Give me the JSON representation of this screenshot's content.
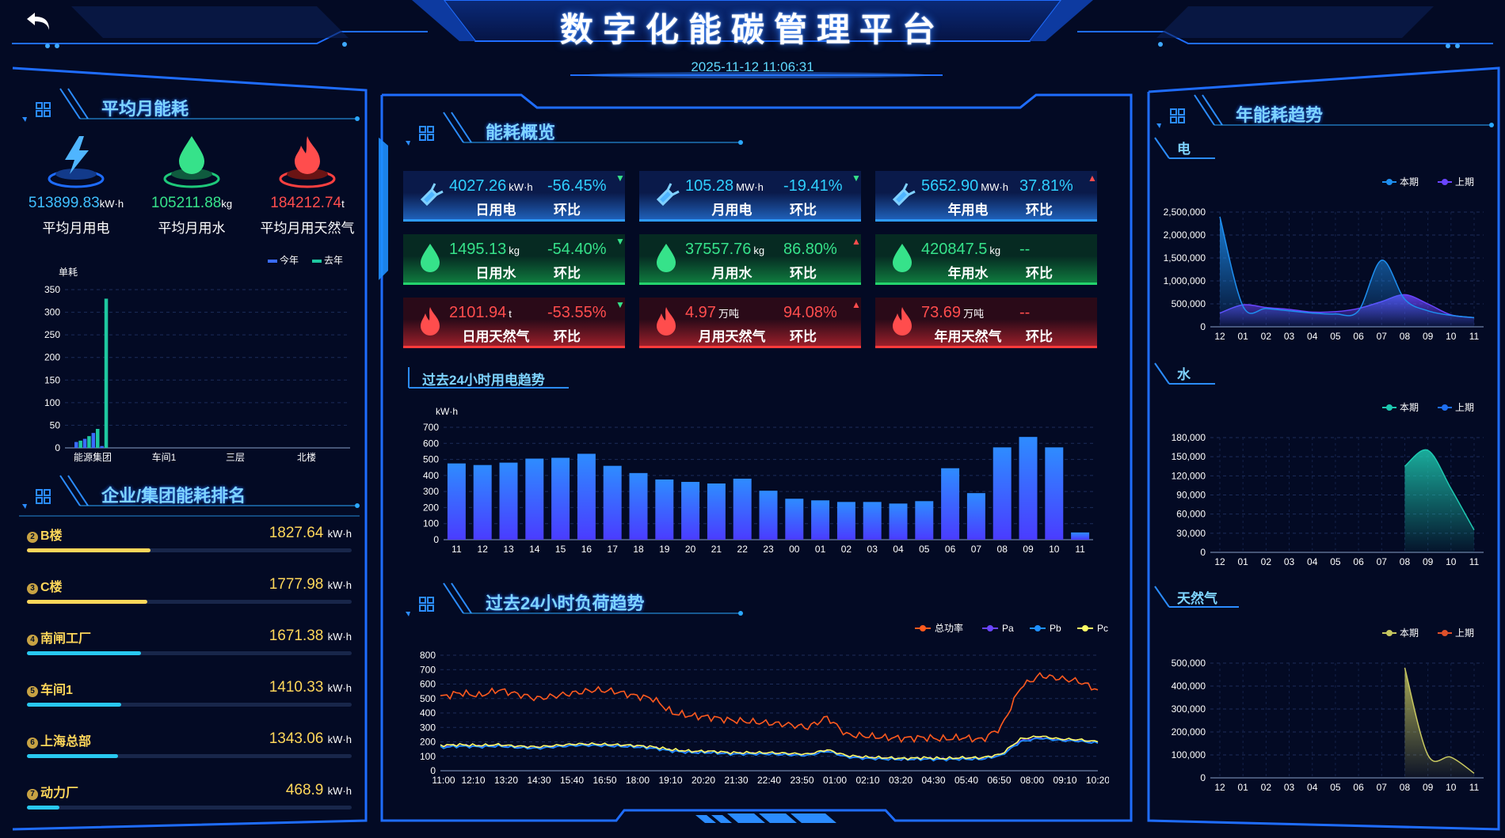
{
  "header": {
    "title": "数字化能碳管理平台",
    "datetime": "2025-11-12 11:06:31"
  },
  "left": {
    "avg_title": "平均月能耗",
    "stats": [
      {
        "value": "513899.83",
        "unit": "kW·h",
        "label": "平均月用电",
        "color": "#3fbfff",
        "icon": "lightning-icon"
      },
      {
        "value": "105211.88",
        "unit": "kg",
        "label": "平均月用水",
        "color": "#36e28a",
        "icon": "water-drop-icon"
      },
      {
        "value": "184212.74",
        "unit": "t",
        "label": "平均月用天然气",
        "color": "#ff4d4d",
        "icon": "flame-icon"
      }
    ],
    "rank_title": "企业/集团能耗排名",
    "ranking": [
      {
        "rank": "2",
        "name": "B楼",
        "value": "1827.64",
        "unit": "kW·h",
        "fraction": 0.38,
        "color": "#ffd75a"
      },
      {
        "rank": "3",
        "name": "C楼",
        "value": "1777.98",
        "unit": "kW·h",
        "fraction": 0.37,
        "color": "#ffd75a"
      },
      {
        "rank": "4",
        "name": "南闸工厂",
        "value": "1671.38",
        "unit": "kW·h",
        "fraction": 0.35,
        "color": "#28c8f0"
      },
      {
        "rank": "5",
        "name": "车间1",
        "value": "1410.33",
        "unit": "kW·h",
        "fraction": 0.29,
        "color": "#28c8f0"
      },
      {
        "rank": "6",
        "name": "上海总部",
        "value": "1343.06",
        "unit": "kW·h",
        "fraction": 0.28,
        "color": "#28c8f0"
      },
      {
        "rank": "7",
        "name": "动力厂",
        "value": "468.9",
        "unit": "kW·h",
        "fraction": 0.1,
        "color": "#28c8f0"
      }
    ]
  },
  "center": {
    "overview_title": "能耗概览",
    "cards": [
      {
        "value": "4027.26",
        "unit": "kW·h",
        "label": "日用电",
        "change": "-56.45%",
        "change_label": "环比",
        "theme": "blue",
        "direction": "down",
        "icon": "plug-icon"
      },
      {
        "value": "105.28",
        "unit": "MW·h",
        "label": "月用电",
        "change": "-19.41%",
        "change_label": "环比",
        "theme": "blue",
        "direction": "down",
        "icon": "plug-icon"
      },
      {
        "value": "5652.90",
        "unit": "MW·h",
        "label": "年用电",
        "change": "37.81%",
        "change_label": "环比",
        "theme": "blue",
        "direction": "up",
        "icon": "plug-icon"
      },
      {
        "value": "1495.13",
        "unit": "kg",
        "label": "日用水",
        "change": "-54.40%",
        "change_label": "环比",
        "theme": "green",
        "direction": "down",
        "icon": "water-drop-icon"
      },
      {
        "value": "37557.76",
        "unit": "kg",
        "label": "月用水",
        "change": "86.80%",
        "change_label": "环比",
        "theme": "green",
        "direction": "up",
        "icon": "water-drop-icon"
      },
      {
        "value": "420847.5",
        "unit": "kg",
        "label": "年用水",
        "change": "--",
        "change_label": "环比",
        "theme": "green",
        "direction": "none",
        "icon": "water-drop-icon"
      },
      {
        "value": "2101.94",
        "unit": "t",
        "label": "日用天然气",
        "change": "-53.55%",
        "change_label": "环比",
        "theme": "red",
        "direction": "down",
        "icon": "flame-icon"
      },
      {
        "value": "4.97",
        "unit": "万吨",
        "label": "月用天然气",
        "change": "94.08%",
        "change_label": "环比",
        "theme": "red",
        "direction": "up",
        "icon": "flame-icon"
      },
      {
        "value": "73.69",
        "unit": "万吨",
        "label": "年用天然气",
        "change": "--",
        "change_label": "环比",
        "theme": "red",
        "direction": "none",
        "icon": "flame-icon"
      }
    ],
    "trend24_title": "过去24小时用电趋势",
    "load_title": "过去24小时负荷趋势"
  },
  "right": {
    "title": "年能耗趋势",
    "sub_electric": "电",
    "sub_water": "水",
    "sub_gas": "天然气"
  },
  "chart_data": [
    {
      "type": "bar",
      "id": "unit-consumption",
      "ylabel": "单耗",
      "categories": [
        "能源集团",
        "车间1",
        "三层",
        "北楼"
      ],
      "ylim": [
        0,
        350
      ],
      "yticks": [
        0,
        50,
        100,
        150,
        200,
        250,
        300,
        350
      ],
      "legend": [
        "今年",
        "去年"
      ],
      "legend_position": "top-right",
      "grid": true,
      "colors": [
        "#3a6cff",
        "#1ec8a0"
      ],
      "group0_bars": [
        13,
        16,
        20,
        26,
        33,
        42,
        4,
        330
      ],
      "group0_colors": [
        "#3a6cff",
        "#1ec8a0",
        "#3a6cff",
        "#1ec8a0",
        "#3a6cff",
        "#1ec8a0",
        "#3a6cff",
        "#1ec8a0"
      ]
    },
    {
      "type": "bar",
      "id": "power-24h",
      "ylabel": "kW·h",
      "categories": [
        "11",
        "12",
        "13",
        "14",
        "15",
        "16",
        "17",
        "18",
        "19",
        "20",
        "21",
        "22",
        "23",
        "00",
        "01",
        "02",
        "03",
        "04",
        "05",
        "06",
        "07",
        "08",
        "09",
        "10",
        "11"
      ],
      "values": [
        475,
        465,
        480,
        505,
        510,
        535,
        460,
        415,
        375,
        360,
        350,
        380,
        305,
        255,
        245,
        235,
        235,
        225,
        240,
        445,
        290,
        575,
        640,
        575,
        45
      ],
      "ylim": [
        0,
        700
      ],
      "yticks": [
        0,
        100,
        200,
        300,
        400,
        500,
        600,
        700
      ],
      "grid": true
    },
    {
      "type": "line",
      "id": "load-24h",
      "x_ticks": [
        "11:00",
        "12:10",
        "13:20",
        "14:30",
        "15:40",
        "16:50",
        "18:00",
        "19:10",
        "20:20",
        "21:30",
        "22:40",
        "23:50",
        "01:00",
        "02:10",
        "03:20",
        "04:30",
        "05:40",
        "06:50",
        "08:00",
        "09:10",
        "10:20"
      ],
      "ylim": [
        0,
        800
      ],
      "yticks": [
        0,
        100,
        200,
        300,
        400,
        500,
        600,
        700,
        800
      ],
      "legend_position": "top-right",
      "grid": true,
      "series": [
        {
          "name": "总功率",
          "color": "#ff5a1e",
          "values": [
            510,
            540,
            520,
            560,
            530,
            500,
            520,
            540,
            560,
            550,
            520,
            500,
            400,
            380,
            370,
            350,
            340,
            330,
            320,
            300,
            370,
            250,
            240,
            230,
            225,
            230,
            220,
            230,
            215,
            300,
            580,
            660,
            640,
            620,
            560
          ]
        },
        {
          "name": "Pa",
          "color": "#6a45ff",
          "values": [
            170,
            175,
            170,
            175,
            165,
            160,
            170,
            180,
            180,
            175,
            170,
            160,
            140,
            130,
            130,
            120,
            120,
            120,
            115,
            110,
            140,
            100,
            90,
            85,
            80,
            85,
            80,
            85,
            85,
            110,
            210,
            230,
            215,
            210,
            195
          ]
        },
        {
          "name": "Pb",
          "color": "#1e90ff",
          "values": [
            160,
            170,
            165,
            170,
            160,
            155,
            165,
            175,
            175,
            170,
            165,
            155,
            135,
            125,
            125,
            115,
            115,
            115,
            110,
            105,
            135,
            95,
            85,
            80,
            78,
            80,
            78,
            80,
            80,
            105,
            200,
            225,
            210,
            205,
            190
          ]
        },
        {
          "name": "Pc",
          "color": "#ffff66",
          "values": [
            175,
            180,
            175,
            180,
            170,
            165,
            175,
            185,
            185,
            180,
            175,
            165,
            145,
            135,
            135,
            125,
            125,
            125,
            120,
            115,
            145,
            105,
            95,
            90,
            85,
            90,
            85,
            90,
            90,
            115,
            220,
            240,
            220,
            215,
            200
          ]
        }
      ]
    },
    {
      "type": "area",
      "id": "annual-electric",
      "categories": [
        "12",
        "01",
        "02",
        "03",
        "04",
        "05",
        "06",
        "07",
        "08",
        "09",
        "10",
        "11"
      ],
      "ylim": [
        0,
        2500000
      ],
      "yticks": [
        "0",
        "500,000",
        "1,000,000",
        "1,500,000",
        "2,000,000",
        "2,500,000"
      ],
      "legend_position": "top-right",
      "grid": true,
      "series": [
        {
          "name": "本期",
          "color": "#1e8ff0",
          "values": [
            2400000,
            450000,
            400000,
            350000,
            300000,
            280000,
            350000,
            1450000,
            600000,
            350000,
            250000,
            200000
          ]
        },
        {
          "name": "上期",
          "color": "#6a45ff",
          "values": [
            300000,
            480000,
            420000,
            380000,
            320000,
            330000,
            400000,
            550000,
            700000,
            500000,
            260000,
            200000
          ]
        }
      ]
    },
    {
      "type": "area",
      "id": "annual-water",
      "categories": [
        "12",
        "01",
        "02",
        "03",
        "04",
        "05",
        "06",
        "07",
        "08",
        "09",
        "10",
        "11"
      ],
      "ylim": [
        0,
        180000
      ],
      "yticks": [
        "0",
        "30,000",
        "60,000",
        "90,000",
        "120,000",
        "150,000",
        "180,000"
      ],
      "legend_position": "top-right",
      "grid": true,
      "series": [
        {
          "name": "本期",
          "color": "#1ec8b0",
          "values": [
            null,
            null,
            null,
            null,
            null,
            null,
            null,
            null,
            135000,
            160000,
            100000,
            35000
          ]
        },
        {
          "name": "上期",
          "color": "#1e6ff0",
          "values": [
            null,
            null,
            null,
            null,
            null,
            null,
            null,
            null,
            null,
            null,
            null,
            null
          ]
        }
      ]
    },
    {
      "type": "area",
      "id": "annual-gas",
      "categories": [
        "12",
        "01",
        "02",
        "03",
        "04",
        "05",
        "06",
        "07",
        "08",
        "09",
        "10",
        "11"
      ],
      "ylim": [
        0,
        500000
      ],
      "yticks": [
        "0",
        "100,000",
        "200,000",
        "300,000",
        "400,000",
        "500,000"
      ],
      "legend_position": "top-right",
      "grid": true,
      "series": [
        {
          "name": "本期",
          "color": "#c8c860",
          "values": [
            null,
            null,
            null,
            null,
            null,
            null,
            null,
            null,
            480000,
            100000,
            90000,
            20000
          ]
        },
        {
          "name": "上期",
          "color": "#e0502a",
          "values": [
            null,
            null,
            null,
            null,
            null,
            null,
            null,
            null,
            null,
            null,
            null,
            null
          ]
        }
      ]
    }
  ]
}
